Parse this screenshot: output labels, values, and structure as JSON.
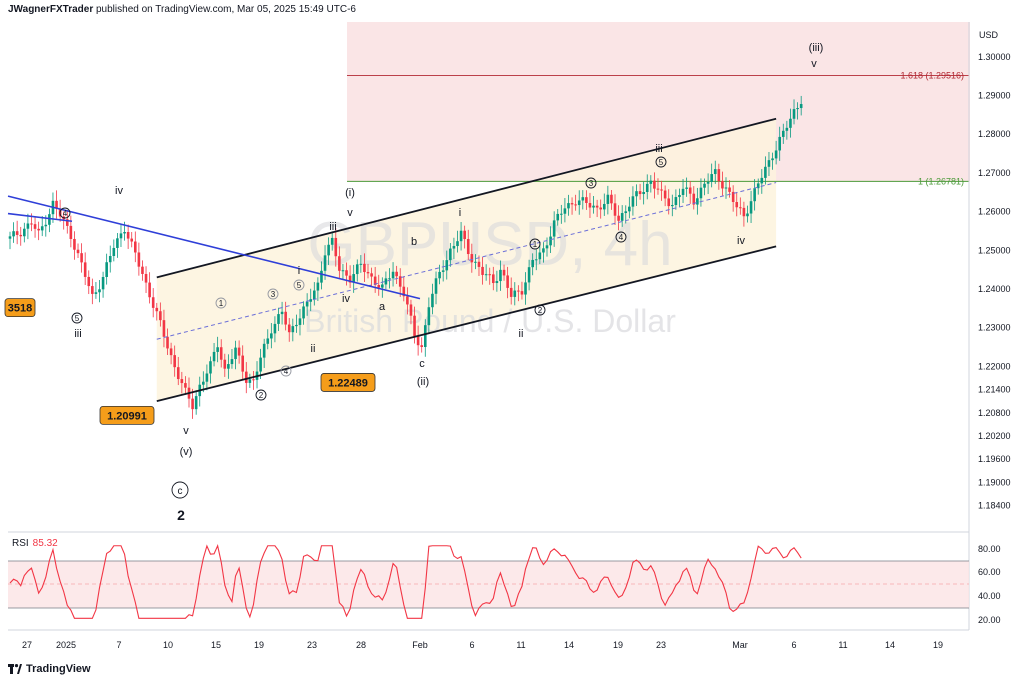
{
  "header": {
    "publisher": "JWagnerFXTrader",
    "text": "published on TradingView.com, Mar 05, 2025 15:49 UTC-6"
  },
  "currency": "USD",
  "watermark": {
    "symbol": "GBPUSD, 4h",
    "description": "British Pound / U.S. Dollar"
  },
  "footer": {
    "brand": "TradingView"
  },
  "rsi": {
    "label": "RSI",
    "value": "85.32",
    "levels": [
      "80.00",
      "60.00",
      "40.00",
      "20.00"
    ]
  },
  "colors": {
    "up": "#089981",
    "down": "#f23645",
    "channel": "#000000",
    "trendline": "#2f3fd8",
    "fib_zone": "#f7d9dc",
    "rsi_line": "#f23645",
    "rsi_band": "#fbe3e5"
  },
  "chart_data": {
    "type": "candlestick",
    "title": "GBPUSD, 4h",
    "ylabel": "USD",
    "ylim": [
      1.179,
      1.309
    ],
    "price_ticks": [
      "1.30000",
      "1.29000",
      "1.28000",
      "1.27000",
      "1.26000",
      "1.25000",
      "1.24000",
      "1.23000",
      "1.22000",
      "1.21400",
      "1.20800",
      "1.20200",
      "1.19600",
      "1.19000",
      "1.18400"
    ],
    "date_ticks": [
      "27",
      "2025",
      "7",
      "10",
      "15",
      "19",
      "23",
      "28",
      "Feb",
      "6",
      "11",
      "14",
      "19",
      "23",
      "Mar",
      "6",
      "11",
      "14",
      "19"
    ],
    "fib_levels": [
      {
        "label": "1.618 (1.29516)",
        "value": 1.29516
      },
      {
        "label": "1 (1.26781)",
        "value": 1.26781
      }
    ],
    "price_tags": [
      {
        "label": "1.20991",
        "value": 1.20991
      },
      {
        "label": "1.22489",
        "value": 1.22489
      },
      {
        "label": "3518",
        "value": 1.23518
      }
    ],
    "close_path": [
      [
        0,
        1.253
      ],
      [
        3,
        1.255
      ],
      [
        6,
        1.257
      ],
      [
        8,
        1.254
      ],
      [
        10,
        1.258
      ],
      [
        12,
        1.262
      ],
      [
        14,
        1.259
      ],
      [
        17,
        1.254
      ],
      [
        20,
        1.246
      ],
      [
        23,
        1.238
      ],
      [
        26,
        1.243
      ],
      [
        29,
        1.251
      ],
      [
        32,
        1.256
      ],
      [
        34,
        1.251
      ],
      [
        37,
        1.244
      ],
      [
        40,
        1.236
      ],
      [
        43,
        1.228
      ],
      [
        46,
        1.22
      ],
      [
        49,
        1.213
      ],
      [
        51,
        1.21
      ],
      [
        53,
        1.215
      ],
      [
        56,
        1.22
      ],
      [
        58,
        1.226
      ],
      [
        60,
        1.219
      ],
      [
        63,
        1.224
      ],
      [
        66,
        1.217
      ],
      [
        68,
        1.216
      ],
      [
        70,
        1.222
      ],
      [
        73,
        1.23
      ],
      [
        76,
        1.234
      ],
      [
        78,
        1.228
      ],
      [
        80,
        1.232
      ],
      [
        83,
        1.236
      ],
      [
        86,
        1.241
      ],
      [
        88,
        1.25
      ],
      [
        90,
        1.252
      ],
      [
        92,
        1.245
      ],
      [
        95,
        1.243
      ],
      [
        98,
        1.246
      ],
      [
        101,
        1.243
      ],
      [
        104,
        1.24
      ],
      [
        107,
        1.245
      ],
      [
        110,
        1.239
      ],
      [
        113,
        1.228
      ],
      [
        115,
        1.225
      ],
      [
        117,
        1.236
      ],
      [
        120,
        1.244
      ],
      [
        123,
        1.25
      ],
      [
        126,
        1.254
      ],
      [
        129,
        1.248
      ],
      [
        132,
        1.244
      ],
      [
        135,
        1.242
      ],
      [
        137,
        1.245
      ],
      [
        140,
        1.238
      ],
      [
        143,
        1.24
      ],
      [
        146,
        1.247
      ],
      [
        149,
        1.25
      ],
      [
        152,
        1.257
      ],
      [
        155,
        1.261
      ],
      [
        158,
        1.263
      ],
      [
        161,
        1.262
      ],
      [
        164,
        1.261
      ],
      [
        167,
        1.263
      ],
      [
        170,
        1.258
      ],
      [
        173,
        1.262
      ],
      [
        176,
        1.265
      ],
      [
        179,
        1.268
      ],
      [
        182,
        1.264
      ],
      [
        185,
        1.262
      ],
      [
        188,
        1.266
      ],
      [
        191,
        1.263
      ],
      [
        194,
        1.267
      ],
      [
        197,
        1.27
      ],
      [
        200,
        1.266
      ],
      [
        203,
        1.261
      ],
      [
        205,
        1.259
      ],
      [
        207,
        1.263
      ],
      [
        210,
        1.269
      ],
      [
        213,
        1.275
      ],
      [
        216,
        1.28
      ],
      [
        219,
        1.286
      ],
      [
        221,
        1.289
      ]
    ],
    "channel": {
      "upper": [
        [
          41,
          1.243
        ],
        [
          214,
          1.284
        ]
      ],
      "lower": [
        [
          41,
          1.211
        ],
        [
          214,
          1.251
        ]
      ]
    },
    "trendline_start": "iv",
    "waves": [
      "iv",
      "4",
      "5",
      "iii",
      "(i)",
      "v",
      "iii",
      "b",
      "a",
      "i",
      "3",
      "5",
      "iv",
      "ii",
      "1",
      "2",
      "4",
      "c",
      "(ii)",
      "i",
      "1",
      "ii",
      "2",
      "3",
      "4",
      "5",
      "iii",
      "iv",
      "(iii)",
      "v",
      "v",
      "(v)",
      "c",
      "2"
    ]
  }
}
